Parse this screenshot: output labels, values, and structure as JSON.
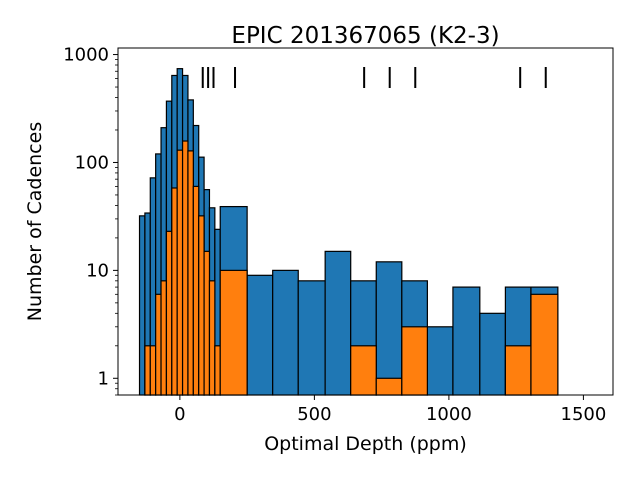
{
  "chart_data": {
    "type": "bar",
    "title": "EPIC 201367065 (K2-3)",
    "xlabel": "Optimal Depth (ppm)",
    "ylabel": "Number of Cadences",
    "yscale": "log",
    "xlim": [
      -230,
      1610
    ],
    "ylim": [
      0.7,
      1150
    ],
    "xticks": [
      0,
      500,
      1000,
      1500
    ],
    "xtick_labels": [
      "0",
      "500",
      "1000",
      "1500"
    ],
    "yticks": [
      1,
      10,
      100,
      1000
    ],
    "ytick_labels": [
      "1",
      "10",
      "100",
      "1000"
    ],
    "grid": false,
    "colors": {
      "blue": "#1f77b4",
      "orange": "#ff7f0e",
      "edge": "#000000"
    },
    "series": [
      {
        "color": "#1f77b4",
        "bins": [
          {
            "x0": -150,
            "x1": -130,
            "v": 32
          },
          {
            "x0": -130,
            "x1": -110,
            "v": 34
          },
          {
            "x0": -110,
            "x1": -90,
            "v": 72
          },
          {
            "x0": -90,
            "x1": -70,
            "v": 120
          },
          {
            "x0": -70,
            "x1": -50,
            "v": 210
          },
          {
            "x0": -50,
            "x1": -30,
            "v": 370
          },
          {
            "x0": -30,
            "x1": -10,
            "v": 640
          },
          {
            "x0": -10,
            "x1": 10,
            "v": 740
          },
          {
            "x0": 10,
            "x1": 30,
            "v": 640
          },
          {
            "x0": 30,
            "x1": 50,
            "v": 380
          },
          {
            "x0": 50,
            "x1": 70,
            "v": 220
          },
          {
            "x0": 70,
            "x1": 90,
            "v": 112
          },
          {
            "x0": 90,
            "x1": 110,
            "v": 56
          },
          {
            "x0": 110,
            "x1": 130,
            "v": 38
          },
          {
            "x0": 130,
            "x1": 150,
            "v": 24
          },
          {
            "x0": 150,
            "x1": 250,
            "v": 39
          },
          {
            "x0": 250,
            "x1": 345,
            "v": 9
          },
          {
            "x0": 345,
            "x1": 440,
            "v": 10
          },
          {
            "x0": 440,
            "x1": 540,
            "v": 8
          },
          {
            "x0": 540,
            "x1": 635,
            "v": 15
          },
          {
            "x0": 635,
            "x1": 730,
            "v": 8
          },
          {
            "x0": 730,
            "x1": 825,
            "v": 12
          },
          {
            "x0": 825,
            "x1": 920,
            "v": 8
          },
          {
            "x0": 920,
            "x1": 1015,
            "v": 3
          },
          {
            "x0": 1015,
            "x1": 1115,
            "v": 7
          },
          {
            "x0": 1115,
            "x1": 1210,
            "v": 4
          },
          {
            "x0": 1210,
            "x1": 1305,
            "v": 7
          },
          {
            "x0": 1305,
            "x1": 1405,
            "v": 7
          }
        ]
      },
      {
        "color": "#ff7f0e",
        "bins": [
          {
            "x0": -130,
            "x1": -110,
            "v": 2
          },
          {
            "x0": -110,
            "x1": -90,
            "v": 2
          },
          {
            "x0": -90,
            "x1": -70,
            "v": 6
          },
          {
            "x0": -70,
            "x1": -50,
            "v": 8
          },
          {
            "x0": -50,
            "x1": -30,
            "v": 23
          },
          {
            "x0": -30,
            "x1": -10,
            "v": 58
          },
          {
            "x0": -10,
            "x1": 10,
            "v": 130
          },
          {
            "x0": 10,
            "x1": 30,
            "v": 158
          },
          {
            "x0": 30,
            "x1": 50,
            "v": 128
          },
          {
            "x0": 50,
            "x1": 70,
            "v": 60
          },
          {
            "x0": 70,
            "x1": 90,
            "v": 32
          },
          {
            "x0": 90,
            "x1": 110,
            "v": 15
          },
          {
            "x0": 110,
            "x1": 130,
            "v": 8
          },
          {
            "x0": 130,
            "x1": 150,
            "v": 2
          },
          {
            "x0": 150,
            "x1": 250,
            "v": 10
          },
          {
            "x0": 635,
            "x1": 730,
            "v": 2
          },
          {
            "x0": 730,
            "x1": 825,
            "v": 1
          },
          {
            "x0": 825,
            "x1": 920,
            "v": 3
          },
          {
            "x0": 1210,
            "x1": 1305,
            "v": 2
          },
          {
            "x0": 1305,
            "x1": 1405,
            "v": 6
          }
        ]
      }
    ],
    "markers": [
      85,
      105,
      125,
      205,
      685,
      780,
      875,
      1265,
      1360
    ]
  }
}
